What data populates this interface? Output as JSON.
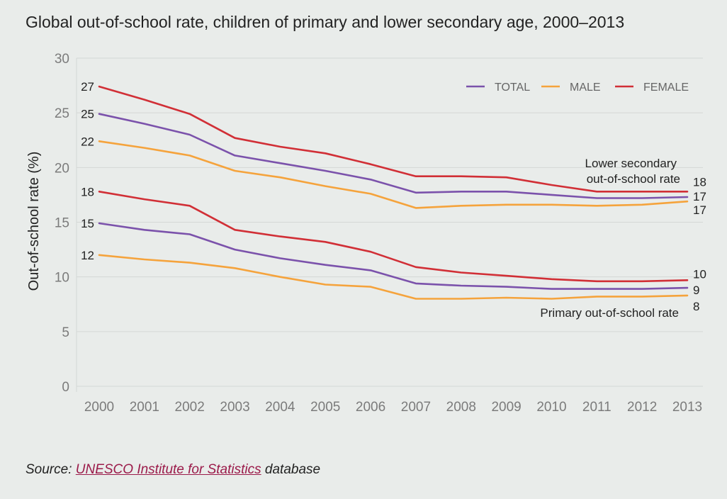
{
  "title": "Global out-of-school rate, children of primary and lower secondary age, 2000–2013",
  "source": {
    "prefix": "Source: ",
    "link": "UNESCO Institute for Statistics",
    "suffix": " database"
  },
  "colors": {
    "total": "#7b52ab",
    "male": "#f5a33c",
    "female": "#d12f36",
    "grid": "#d4d7d5",
    "axis_text": "#7b7b7b"
  },
  "chart_data": {
    "type": "line",
    "ylabel": "Out-of-school rate (%)",
    "xlabel": "",
    "ylim": [
      0,
      30
    ],
    "yticks": [
      0,
      5,
      10,
      15,
      20,
      25,
      30
    ],
    "x": [
      "2000",
      "2001",
      "2002",
      "2003",
      "2004",
      "2005",
      "2006",
      "2007",
      "2008",
      "2009",
      "2010",
      "2011",
      "2012",
      "2013"
    ],
    "legend": {
      "placement": "top-right",
      "entries": [
        {
          "key": "total",
          "label": "TOTAL"
        },
        {
          "key": "male",
          "label": "MALE"
        },
        {
          "key": "female",
          "label": "FEMALE"
        }
      ]
    },
    "grid": true,
    "series": [
      {
        "group": "lower_secondary",
        "key": "female",
        "values": [
          27.4,
          26.2,
          24.9,
          22.7,
          21.9,
          21.3,
          20.3,
          19.2,
          19.2,
          19.1,
          18.4,
          17.8,
          17.8,
          17.8
        ]
      },
      {
        "group": "lower_secondary",
        "key": "total",
        "values": [
          24.9,
          24.0,
          23.0,
          21.1,
          20.4,
          19.7,
          18.9,
          17.7,
          17.8,
          17.8,
          17.5,
          17.2,
          17.2,
          17.3
        ]
      },
      {
        "group": "lower_secondary",
        "key": "male",
        "values": [
          22.4,
          21.8,
          21.1,
          19.7,
          19.1,
          18.3,
          17.6,
          16.3,
          16.5,
          16.6,
          16.6,
          16.5,
          16.6,
          16.9
        ]
      },
      {
        "group": "primary",
        "key": "female",
        "values": [
          17.8,
          17.1,
          16.5,
          14.3,
          13.7,
          13.2,
          12.3,
          10.9,
          10.4,
          10.1,
          9.8,
          9.6,
          9.6,
          9.7
        ]
      },
      {
        "group": "primary",
        "key": "total",
        "values": [
          14.9,
          14.3,
          13.9,
          12.5,
          11.7,
          11.1,
          10.6,
          9.4,
          9.2,
          9.1,
          8.9,
          8.9,
          8.9,
          9.0
        ]
      },
      {
        "group": "primary",
        "key": "male",
        "values": [
          12.0,
          11.6,
          11.3,
          10.8,
          10.0,
          9.3,
          9.1,
          8.0,
          8.0,
          8.1,
          8.0,
          8.2,
          8.2,
          8.3
        ]
      }
    ],
    "start_labels": [
      {
        "text": "27",
        "value": 27.4
      },
      {
        "text": "25",
        "value": 24.9
      },
      {
        "text": "22",
        "value": 22.4
      },
      {
        "text": "18",
        "value": 17.8
      },
      {
        "text": "15",
        "value": 14.9
      },
      {
        "text": "12",
        "value": 12.0
      }
    ],
    "end_labels": [
      {
        "text": "18",
        "value": 17.8
      },
      {
        "text": "17",
        "value": 17.3
      },
      {
        "text": "17",
        "value": 16.9
      },
      {
        "text": "10",
        "value": 9.7
      },
      {
        "text": "9",
        "value": 9.0
      },
      {
        "text": "8",
        "value": 8.3
      }
    ],
    "annotations": {
      "lower_secondary": [
        "Lower secondary",
        "out-of-school rate"
      ],
      "primary": "Primary out-of-school rate"
    }
  }
}
